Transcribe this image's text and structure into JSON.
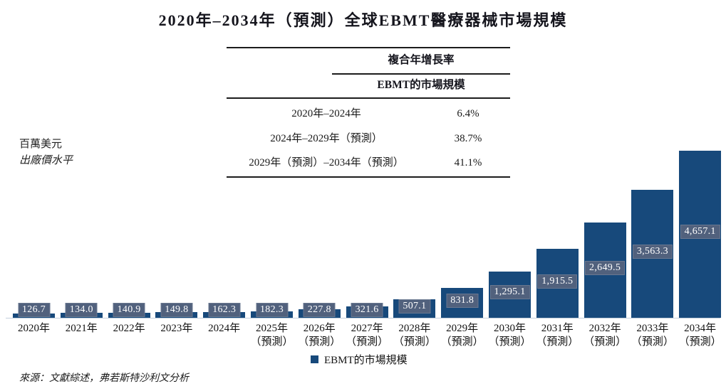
{
  "title": "2020年–2034年（預測）全球EBMT醫療器械市場規模",
  "cagr_table": {
    "header_group": "複合年增長率",
    "header_metric": "EBMT的市場規模",
    "rows": [
      {
        "period": "2020年–2024年",
        "value": "6.4%"
      },
      {
        "period": "2024年–2029年（預測）",
        "value": "38.7%"
      },
      {
        "period": "2029年（預測）–2034年（預測）",
        "value": "41.1%"
      }
    ]
  },
  "y_axis_note": {
    "line1": "百萬美元",
    "line2": "出廠價水平"
  },
  "legend": {
    "label": "EBMT的市場規模"
  },
  "source": "來源：文獻綜述，弗若斯特沙利文分析",
  "chart_data": {
    "type": "bar",
    "title": "2020年–2034年（預測）全球EBMT醫療器械市場規模",
    "unit": "百萬美元",
    "price_basis": "出廠價水平",
    "categories": [
      "2020年",
      "2021年",
      "2022年",
      "2023年",
      "2024年",
      "2025年（預測）",
      "2026年（預測）",
      "2027年（預測）",
      "2028年（預測）",
      "2029年（預測）",
      "2030年（預測）",
      "2031年（預測）",
      "2032年（預測）",
      "2033年（預測）",
      "2034年（預測）"
    ],
    "values": [
      126.7,
      134.0,
      140.9,
      149.8,
      162.3,
      182.3,
      227.8,
      321.6,
      507.1,
      831.8,
      1295.1,
      1915.5,
      2649.5,
      3563.3,
      4657.1
    ],
    "value_labels": [
      "126.7",
      "134.0",
      "140.9",
      "149.8",
      "162.3",
      "182.3",
      "227.8",
      "321.6",
      "507.1",
      "831.8",
      "1,295.1",
      "1,915.5",
      "2,649.5",
      "3,563.3",
      "4,657.1"
    ],
    "series_name": "EBMT的市場規模",
    "bar_color": "#17497B",
    "label_box_color": "#51617D",
    "axis_line_color": "#C3CFDC",
    "ylim": [
      0,
      5000
    ],
    "grid": false,
    "legend_position": "bottom"
  }
}
